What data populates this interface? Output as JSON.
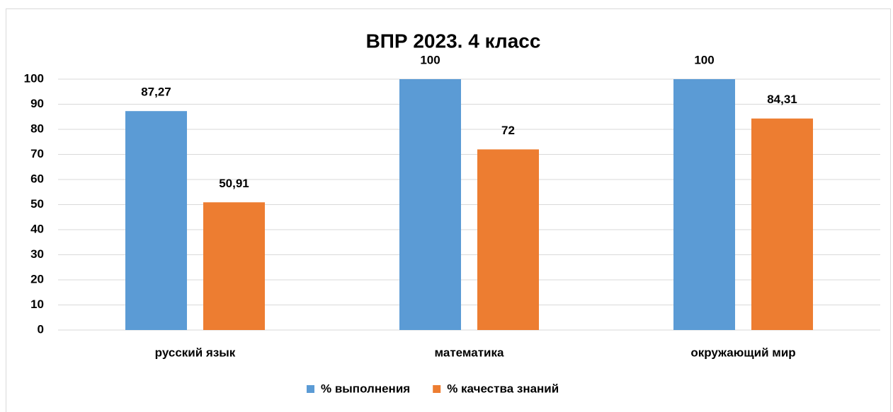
{
  "chart_data": {
    "type": "bar",
    "title": "ВПР 2023. 4 класс",
    "categories": [
      "русский язык",
      "математика",
      "окружающий мир"
    ],
    "series": [
      {
        "name": "% выполнения",
        "color": "#5b9bd5",
        "values": [
          87.27,
          100,
          100
        ],
        "value_labels": [
          "87,27",
          "100",
          "100"
        ]
      },
      {
        "name": "% качества знаний",
        "color": "#ed7d31",
        "values": [
          50.91,
          72,
          84.31
        ],
        "value_labels": [
          "50,91",
          "72",
          "84,31"
        ]
      }
    ],
    "ylim": [
      0,
      100
    ],
    "yticks": [
      0,
      10,
      20,
      30,
      40,
      50,
      60,
      70,
      80,
      90,
      100
    ],
    "grid": true,
    "legend": "bottom"
  }
}
